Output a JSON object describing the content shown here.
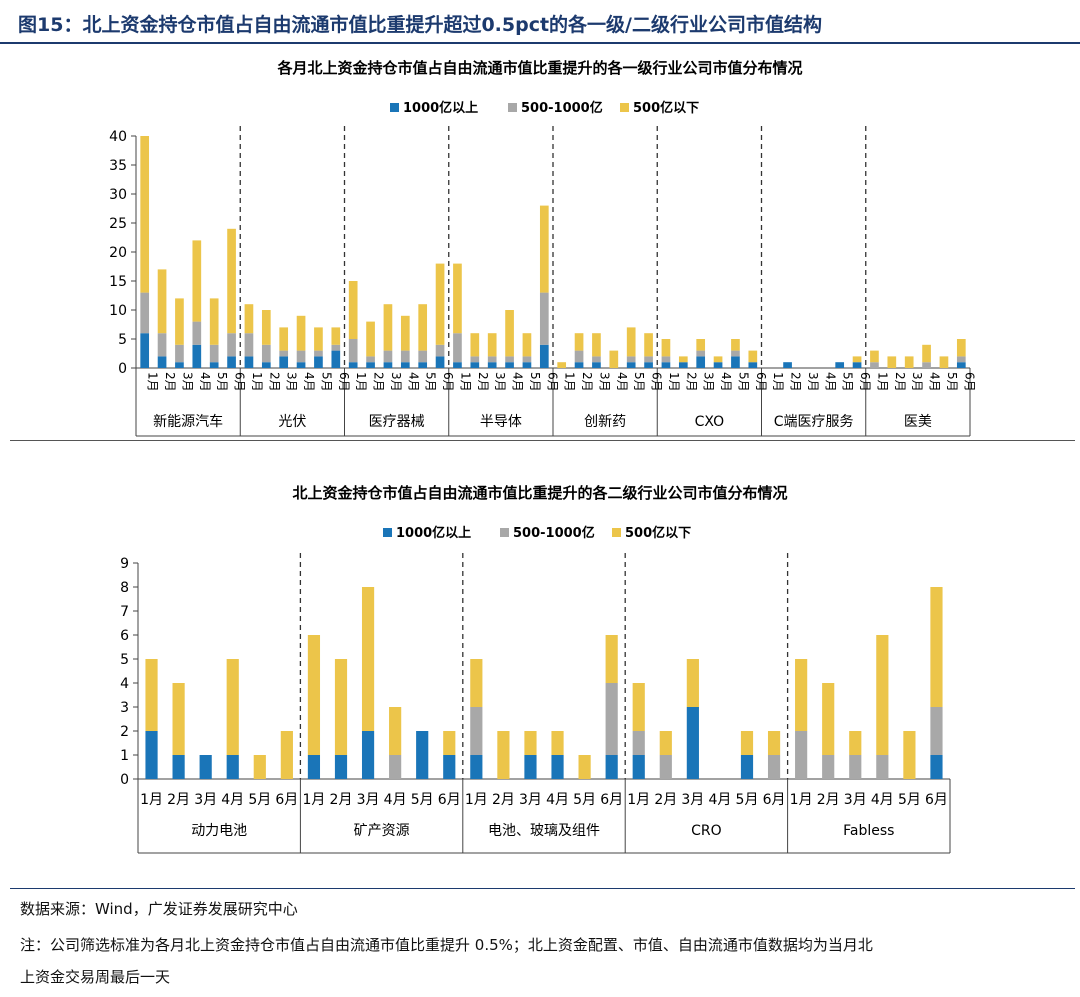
{
  "figure": {
    "title": "图15：北上资金持仓市值占自由流通市值比重提升超过0.5pct的各一级/二级行业公司市值结构",
    "source": "数据来源：Wind，广发证券发展研究中心",
    "note_line1": "注：公司筛选标准为各月北上资金持仓市值占自由流通市值比重提升 0.5%；北上资金配置、市值、自由流通市值数据均为当月北",
    "note_line2": "上资金交易周最后一天"
  },
  "colors": {
    "large": "#1a75b8",
    "mid": "#a8a8a8",
    "small": "#ecc54a",
    "title": "#1c3a6e"
  },
  "chart_data": [
    {
      "type": "bar",
      "stacked": true,
      "title": "各月北上资金持仓市值占自由流通市值比重提升的各一级行业公司市值分布情况",
      "legend_position": "top",
      "ylim": [
        0,
        40
      ],
      "yticks": [
        0,
        5,
        10,
        15,
        20,
        25,
        30,
        35,
        40
      ],
      "months": [
        "1月",
        "2月",
        "3月",
        "4月",
        "5月",
        "6月"
      ],
      "groups": [
        "新能源汽车",
        "光伏",
        "医疗器械",
        "半导体",
        "创新药",
        "CXO",
        "C端医疗服务",
        "医美"
      ],
      "series": [
        {
          "name": "1000亿以上",
          "values": [
            [
              6,
              2,
              1,
              4,
              1,
              2
            ],
            [
              2,
              1,
              2,
              1,
              2,
              3
            ],
            [
              1,
              1,
              1,
              1,
              1,
              2
            ],
            [
              1,
              1,
              1,
              1,
              1,
              4
            ],
            [
              0,
              1,
              1,
              0,
              1,
              1
            ],
            [
              1,
              1,
              2,
              1,
              2,
              1
            ],
            [
              0,
              1,
              0,
              0,
              1,
              1
            ],
            [
              0,
              0,
              0,
              0,
              0,
              1
            ]
          ]
        },
        {
          "name": "500-1000亿",
          "values": [
            [
              7,
              4,
              3,
              4,
              3,
              4
            ],
            [
              4,
              3,
              1,
              2,
              1,
              1
            ],
            [
              4,
              1,
              2,
              2,
              2,
              2
            ],
            [
              5,
              1,
              1,
              1,
              1,
              9
            ],
            [
              0,
              2,
              1,
              0,
              1,
              1
            ],
            [
              1,
              0,
              1,
              0,
              1,
              0
            ],
            [
              0,
              0,
              0,
              0,
              0,
              0
            ],
            [
              1,
              0,
              0,
              1,
              0,
              1
            ]
          ]
        },
        {
          "name": "500亿以下",
          "values": [
            [
              27,
              11,
              8,
              14,
              8,
              18
            ],
            [
              5,
              6,
              4,
              6,
              4,
              3
            ],
            [
              10,
              6,
              8,
              6,
              8,
              14
            ],
            [
              12,
              4,
              4,
              8,
              4,
              15
            ],
            [
              1,
              3,
              4,
              3,
              5,
              4
            ],
            [
              3,
              1,
              2,
              1,
              2,
              2
            ],
            [
              0,
              0,
              0,
              0,
              0,
              1
            ],
            [
              2,
              2,
              2,
              3,
              2,
              3
            ]
          ]
        }
      ]
    },
    {
      "type": "bar",
      "stacked": true,
      "title": "北上资金持仓市值占自由流通市值比重提升的各二级行业公司市值分布情况",
      "legend_position": "top",
      "ylim": [
        0,
        9
      ],
      "yticks": [
        0,
        1,
        2,
        3,
        4,
        5,
        6,
        7,
        8,
        9
      ],
      "months": [
        "1月",
        "2月",
        "3月",
        "4月",
        "5月",
        "6月"
      ],
      "groups": [
        "动力电池",
        "矿产资源",
        "电池、玻璃及组件",
        "CRO",
        "Fabless"
      ],
      "series": [
        {
          "name": "1000亿以上",
          "values": [
            [
              2,
              1,
              1,
              1,
              0,
              0
            ],
            [
              1,
              1,
              2,
              0,
              2,
              1
            ],
            [
              1,
              0,
              1,
              1,
              0,
              1
            ],
            [
              1,
              0,
              3,
              0,
              1,
              0
            ],
            [
              0,
              0,
              0,
              0,
              0,
              1
            ]
          ]
        },
        {
          "name": "500-1000亿",
          "values": [
            [
              0,
              0,
              0,
              0,
              0,
              0
            ],
            [
              0,
              0,
              0,
              1,
              0,
              0
            ],
            [
              2,
              0,
              0,
              0,
              0,
              3
            ],
            [
              1,
              1,
              0,
              0,
              0,
              1
            ],
            [
              2,
              1,
              1,
              1,
              0,
              2
            ]
          ]
        },
        {
          "name": "500亿以下",
          "values": [
            [
              3,
              3,
              0,
              4,
              1,
              2
            ],
            [
              5,
              4,
              6,
              2,
              0,
              1
            ],
            [
              2,
              2,
              1,
              1,
              1,
              2
            ],
            [
              2,
              1,
              2,
              0,
              1,
              1
            ],
            [
              3,
              3,
              1,
              5,
              2,
              5
            ]
          ]
        }
      ]
    }
  ]
}
